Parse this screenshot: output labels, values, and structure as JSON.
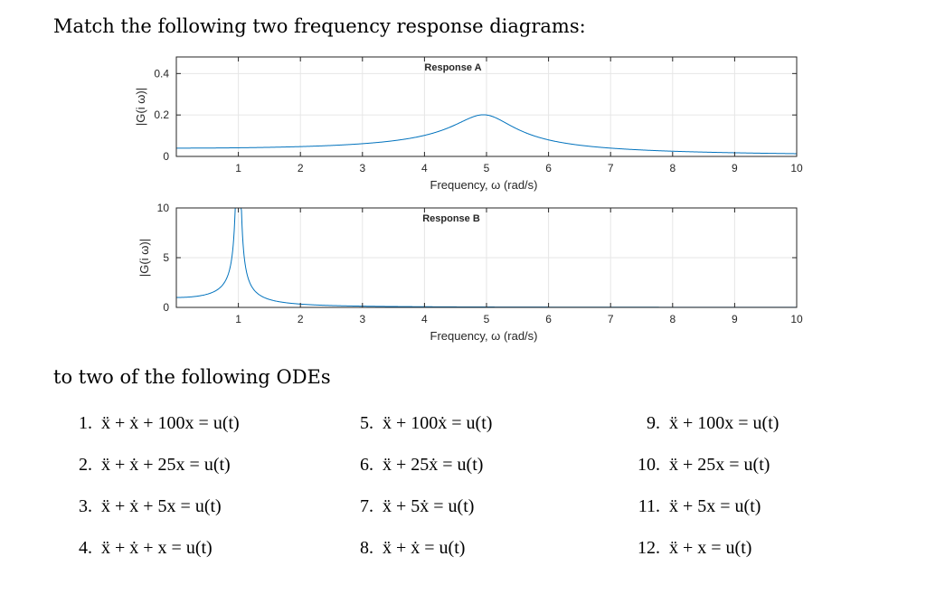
{
  "heading": "Match the following two frequency response diagrams:",
  "subheading": "to two of the following ODEs",
  "chart_data": [
    {
      "type": "line",
      "title": "Response A",
      "xlabel": "Frequency,  ω (rad/s)",
      "ylabel": "|G(i ω)|",
      "xlim": [
        0,
        10
      ],
      "ylim": [
        0,
        0.48
      ],
      "xticks": [
        "1",
        "2",
        "3",
        "4",
        "5",
        "6",
        "7",
        "8",
        "9",
        "10"
      ],
      "yticks": [
        "0",
        "0.2",
        "0.4"
      ],
      "ytick_values": [
        0,
        0.2,
        0.4
      ],
      "grid": true,
      "color": "#0072BD",
      "system": {
        "c": 1,
        "k": 25
      },
      "x": [
        0,
        1,
        2,
        3,
        4,
        4.5,
        5,
        5.5,
        6,
        7,
        8,
        9,
        10
      ],
      "y": [
        0.04,
        0.042,
        0.047,
        0.06,
        0.098,
        0.14,
        0.2,
        0.15,
        0.088,
        0.042,
        0.026,
        0.018,
        0.013
      ]
    },
    {
      "type": "line",
      "title": "Response B",
      "xlabel": "Frequency,  ω (rad/s)",
      "ylabel": "|G(i ω)|",
      "xlim": [
        0,
        10
      ],
      "ylim": [
        0,
        10
      ],
      "xticks": [
        "1",
        "2",
        "3",
        "4",
        "5",
        "6",
        "7",
        "8",
        "9",
        "10"
      ],
      "yticks": [
        "0",
        "5",
        "10"
      ],
      "ytick_values": [
        0,
        5,
        10
      ],
      "grid": true,
      "color": "#0072BD",
      "system": {
        "c": 0,
        "k": 1
      },
      "x": [
        0,
        0.5,
        0.8,
        0.9,
        1.1,
        1.2,
        2,
        3,
        4,
        5,
        6,
        7,
        8,
        9,
        10
      ],
      "y": [
        1.0,
        1.33,
        2.78,
        5.26,
        4.76,
        2.27,
        0.33,
        0.125,
        0.067,
        0.042,
        0.029,
        0.021,
        0.016,
        0.0125,
        0.0101
      ]
    }
  ],
  "odes": [
    {
      "num": "1.",
      "eq": "ẍ + ẋ + 100x = u(t)"
    },
    {
      "num": "2.",
      "eq": "ẍ + ẋ + 25x = u(t)"
    },
    {
      "num": "3.",
      "eq": "ẍ + ẋ + 5x = u(t)"
    },
    {
      "num": "4.",
      "eq": "ẍ + ẋ + x = u(t)"
    },
    {
      "num": "5.",
      "eq": "ẍ + 100ẋ = u(t)"
    },
    {
      "num": "6.",
      "eq": "ẍ + 25ẋ = u(t)"
    },
    {
      "num": "7.",
      "eq": "ẍ + 5ẋ = u(t)"
    },
    {
      "num": "8.",
      "eq": "ẍ + ẋ = u(t)"
    },
    {
      "num": "9.",
      "eq": "ẍ + 100x = u(t)"
    },
    {
      "num": "10.",
      "eq": "ẍ + 25x = u(t)"
    },
    {
      "num": "11.",
      "eq": "ẍ + 5x = u(t)"
    },
    {
      "num": "12.",
      "eq": "ẍ + x = u(t)"
    }
  ]
}
